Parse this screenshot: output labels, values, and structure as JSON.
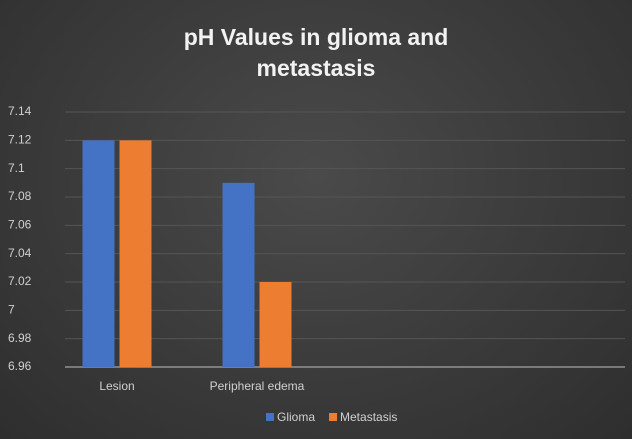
{
  "chart_data": {
    "type": "bar",
    "title": "pH Values in glioma and metastasis",
    "categories": [
      "Lesion",
      "Peripheral edema",
      null,
      null
    ],
    "series": [
      {
        "name": "Glioma",
        "color": "#4472c4",
        "values": [
          7.12,
          7.09,
          null,
          null
        ]
      },
      {
        "name": "Metastasis",
        "color": "#ed7d31",
        "values": [
          7.12,
          7.02,
          null,
          null
        ]
      }
    ],
    "ylim": [
      6.96,
      7.14
    ],
    "yticks": [
      6.96,
      6.98,
      7,
      7.02,
      7.04,
      7.06,
      7.08,
      7.1,
      7.12,
      7.14
    ],
    "grid": true,
    "legend": "bottom"
  }
}
